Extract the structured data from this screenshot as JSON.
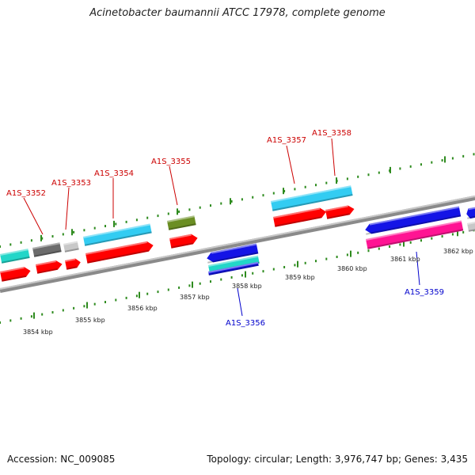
{
  "title": "Acinetobacter baumannii ATCC 17978, complete genome",
  "accession_label": "Accession: NC_009085",
  "stats_label": "Topology: circular; Length: 3,976,747 bp; Genes: 3,435",
  "colors": {
    "backbone": "#8a8a8a",
    "tick": "#2e8b1e",
    "gene_label_forward": "#cc0000",
    "gene_label_reverse": "#0000cc",
    "cds_red": "#ff0000",
    "cyan": "#33ccf2",
    "teal": "#22d6c8",
    "dark_gray": "#6c6c6c",
    "light_gray": "#c8c8c8",
    "olive": "#6b8e23",
    "blue": "#1414e6",
    "magenta": "#ff1493"
  },
  "scale_labels": [
    "3854 kbp",
    "3855 kbp",
    "3856 kbp",
    "3857 kbp",
    "3858 kbp",
    "3859 kbp",
    "3860 kbp",
    "3861 kbp",
    "3862 kbp"
  ],
  "gene_labels": [
    {
      "text": "A1S_3352",
      "strand": "forward"
    },
    {
      "text": "A1S_3353",
      "strand": "forward"
    },
    {
      "text": "A1S_3354",
      "strand": "forward"
    },
    {
      "text": "A1S_3355",
      "strand": "forward"
    },
    {
      "text": "A1S_3357",
      "strand": "forward"
    },
    {
      "text": "A1S_3358",
      "strand": "forward"
    },
    {
      "text": "A1S_3356",
      "strand": "reverse"
    },
    {
      "text": "A1S_3359",
      "strand": "reverse"
    }
  ]
}
